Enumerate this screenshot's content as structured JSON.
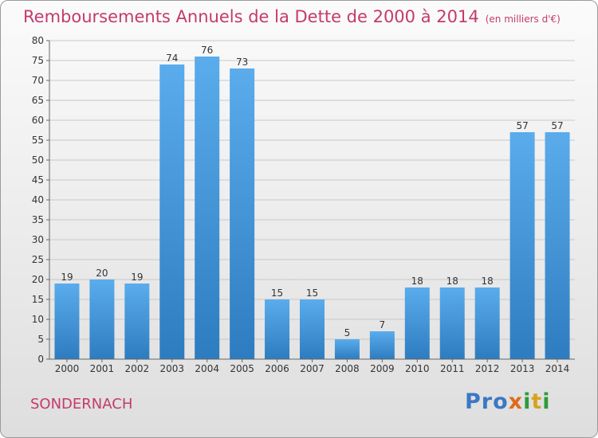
{
  "title": "Remboursements Annuels de la Dette de 2000 à 2014",
  "unit": "(en milliers d'€)",
  "commune": "SONDERNACH",
  "logo": {
    "part1": "Pro",
    "part2": "x",
    "part3": "i",
    "part4": "t",
    "part5": "i"
  },
  "colors": {
    "bar": "#4d9de0",
    "bar_dark": "#2f7dc2",
    "title": "#c43a6d"
  },
  "chart_data": {
    "type": "bar",
    "title": "Remboursements Annuels de la Dette de 2000 à 2014",
    "xlabel": "",
    "ylabel": "",
    "categories": [
      "2000",
      "2001",
      "2002",
      "2003",
      "2004",
      "2005",
      "2006",
      "2007",
      "2008",
      "2009",
      "2010",
      "2011",
      "2012",
      "2013",
      "2014"
    ],
    "values": [
      19,
      20,
      19,
      74,
      76,
      73,
      15,
      15,
      5,
      7,
      18,
      18,
      18,
      57,
      57
    ],
    "ylim": [
      0,
      80
    ],
    "yticks": [
      0,
      5,
      10,
      15,
      20,
      25,
      30,
      35,
      40,
      45,
      50,
      55,
      60,
      65,
      70,
      75,
      80
    ],
    "grid": true,
    "legend": "none"
  }
}
